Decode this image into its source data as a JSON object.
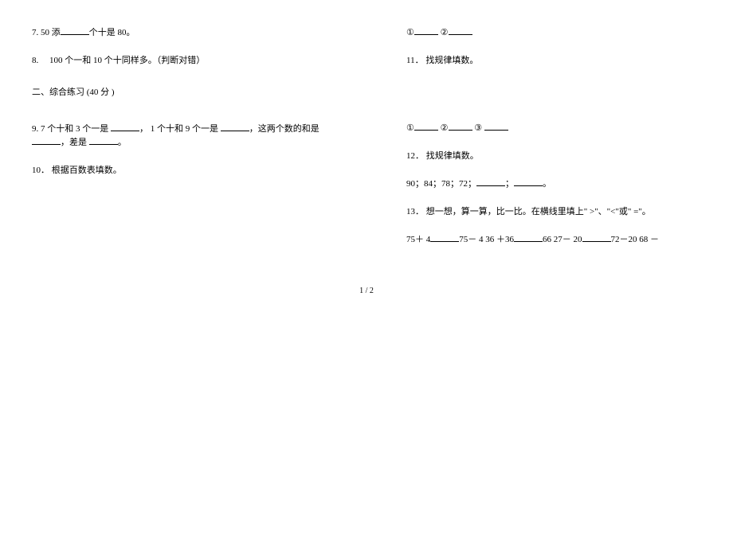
{
  "left": {
    "q7": {
      "prefix": "7. 50  添",
      "suffix": "个十是 80。"
    },
    "q8": "8.　  100 个一和 10 个十同样多。（判断对错）",
    "section": "二、综合练习  (40 分 )",
    "q9": {
      "a": "9. 7 个十和 3 个一是 ",
      "b": "， 1 个十和 9 个一是 ",
      "c": "，这两个数的和是",
      "d": "，差是 ",
      "e": "。"
    },
    "q10": "10． 根据百数表填数。"
  },
  "right": {
    "circled12": {
      "c1": "①",
      "c2": "②"
    },
    "q11": "11． 找规律填数。",
    "circled123": {
      "c1": "①",
      "c2": "②",
      "c3": "③"
    },
    "q12": "12． 找规律填数。",
    "q12_seq": {
      "a": "90；84；78；72；",
      "b": "；",
      "c": "。"
    },
    "q13": "13． 想一想，算一算，比一比。在横线里填上\" >\"、\"<\"或\" =\"。",
    "q13_expr": {
      "a": "75＋ 4",
      "b": "75－ 4 36 ＋36",
      "c": "66 27－ 20",
      "d": "72－20 68 －"
    }
  },
  "pagenum": "1 / 2"
}
